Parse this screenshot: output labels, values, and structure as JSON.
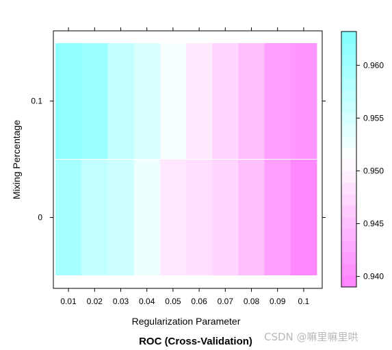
{
  "chart_data": {
    "type": "heatmap",
    "title": "ROC (Cross-Validation)",
    "xlabel": "Regularization Parameter",
    "ylabel": "Mixing Percentage",
    "x": [
      "0.01",
      "0.02",
      "0.03",
      "0.04",
      "0.05",
      "0.06",
      "0.07",
      "0.08",
      "0.09",
      "0.1"
    ],
    "y": [
      "0",
      "0.1"
    ],
    "values": [
      [
        0.9597,
        0.9568,
        0.956,
        0.9528,
        0.9488,
        0.948,
        0.947,
        0.945,
        0.942,
        0.9398
      ],
      [
        0.9617,
        0.9607,
        0.9568,
        0.9548,
        0.952,
        0.949,
        0.947,
        0.945,
        0.942,
        0.941
      ]
    ],
    "colorbar": {
      "min": 0.939,
      "max": 0.9632,
      "ticks": [
        "0.940",
        "0.945",
        "0.950",
        "0.955",
        "0.960"
      ],
      "low_color": "#ff80ff",
      "mid_color": "#ffffff",
      "high_color": "#80ffff"
    },
    "grid": false,
    "legend": "right"
  },
  "watermark": "CSDN @嘛里嘛里哄"
}
